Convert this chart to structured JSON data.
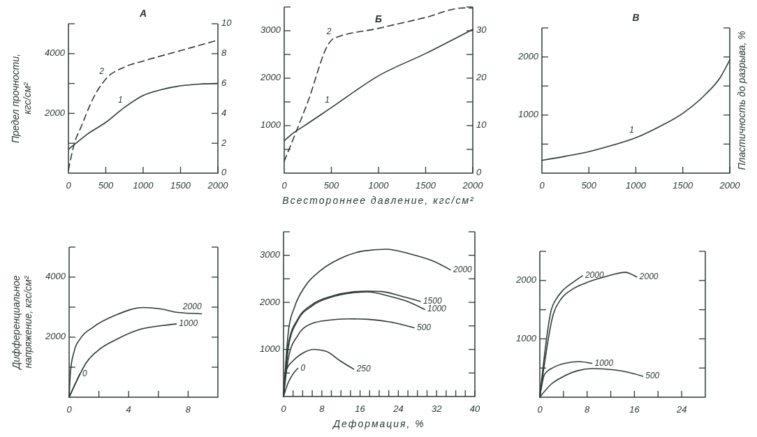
{
  "chart_data": [
    {
      "type": "line",
      "title": "А",
      "ylabel": "Предел прочности, кгс/см²",
      "xlim": [
        0,
        2000
      ],
      "ylim": [
        0,
        5000
      ],
      "y2lim": [
        0,
        10
      ],
      "xticks": [
        0,
        500,
        1000,
        1500,
        2000
      ],
      "yticks": [
        {
          "value": 1000,
          "label": null
        },
        2000,
        {
          "value": 3000,
          "label": null
        },
        4000,
        {
          "value": 5000,
          "label": null
        }
      ],
      "y2ticks": [
        0,
        2,
        4,
        6,
        8,
        10
      ],
      "series": [
        {
          "name": "1",
          "color": "#2e3b34",
          "line_style": "solid",
          "x": [
            0,
            100,
            250,
            500,
            750,
            1000,
            1250,
            1500,
            1750,
            2000
          ],
          "values": [
            800,
            1000,
            1300,
            1700,
            2200,
            2600,
            2800,
            2920,
            2980,
            3000
          ]
        },
        {
          "name": "2",
          "color": "#2e3b34",
          "line_style": "dashed",
          "axis": "y2",
          "x": [
            0,
            80,
            170,
            330,
            500,
            750,
            1000,
            1500,
            2000
          ],
          "values": [
            0.2,
            2,
            3.1,
            5,
            6.3,
            7.1,
            7.5,
            8.2,
            8.9
          ]
        }
      ]
    },
    {
      "type": "line",
      "title": "Б",
      "xlabel": "Всестороннее давление, кгс/см²",
      "xlim": [
        0,
        2000
      ],
      "ylim": [
        0,
        3500
      ],
      "y2lim": [
        0,
        35
      ],
      "xticks": [
        0,
        500,
        1000,
        1500,
        2000
      ],
      "yticks": [
        {
          "value": 500,
          "label": null
        },
        1000,
        {
          "value": 1500,
          "label": null
        },
        2000,
        {
          "value": 2500,
          "label": null
        },
        3000,
        {
          "value": 3500,
          "label": null
        }
      ],
      "y2ticks": [
        0,
        {
          "value": 5,
          "label": null
        },
        10,
        {
          "value": 15,
          "label": null
        },
        20,
        {
          "value": 25,
          "label": null
        },
        30,
        {
          "value": 35,
          "label": null
        }
      ],
      "series": [
        {
          "name": "1",
          "color": "#2e3b34",
          "line_style": "solid",
          "x": [
            0,
            100,
            200,
            500,
            1000,
            1500,
            2000
          ],
          "values": [
            680,
            850,
            980,
            1380,
            2050,
            2520,
            3030
          ]
        },
        {
          "name": "2",
          "color": "#2e3b34",
          "line_style": "dashed",
          "axis": "y2",
          "x": [
            0,
            250,
            480,
            520,
            1000,
            1500,
            1900,
            2000
          ],
          "values": [
            2.5,
            15,
            27.5,
            28.3,
            30.5,
            32.8,
            34.8,
            34.8
          ]
        }
      ]
    },
    {
      "type": "line",
      "title": "В",
      "y2label": "Пластичность до разрыва, %",
      "xlim": [
        0,
        2000
      ],
      "ylim": [
        0,
        2500
      ],
      "xticks": [
        0,
        500,
        1000,
        1500,
        2000
      ],
      "yticks": [
        {
          "value": 500,
          "label": null
        },
        1000,
        {
          "value": 1500,
          "label": null
        },
        2000,
        {
          "value": 2500,
          "label": null
        }
      ],
      "series": [
        {
          "name": "1",
          "color": "#2e3b34",
          "line_style": "solid",
          "x": [
            0,
            250,
            500,
            750,
            1000,
            1250,
            1500,
            1750,
            1900,
            2000
          ],
          "values": [
            220,
            290,
            370,
            480,
            610,
            800,
            1030,
            1370,
            1650,
            1950
          ]
        }
      ]
    },
    {
      "type": "line",
      "ylabel": "Дифференциальное напряжение, кгс/см²",
      "xlim": [
        0,
        10
      ],
      "ylim": [
        0,
        5000
      ],
      "xticks": [
        0,
        {
          "value": 2,
          "label": null
        },
        4,
        {
          "value": 6,
          "label": null
        },
        8
      ],
      "yticks": [
        {
          "value": 1000,
          "label": null
        },
        2000,
        {
          "value": 3000,
          "label": null
        },
        4000,
        {
          "value": 5000,
          "label": null
        }
      ],
      "series": [
        {
          "name": "2000",
          "color": "#2e3b34",
          "line_style": "solid",
          "x": [
            0,
            0.1,
            0.35,
            0.75,
            1.6,
            3.2,
            5,
            6.3,
            7.2,
            8.9
          ],
          "values": [
            0,
            900,
            1550,
            1950,
            2330,
            2750,
            2990,
            2930,
            2830,
            2780
          ]
        },
        {
          "name": "1000",
          "color": "#2e3b34",
          "line_style": "solid",
          "x": [
            0,
            0.5,
            1.15,
            1.9,
            3.2,
            4.7,
            6.3,
            7.2
          ],
          "values": [
            0,
            530,
            1150,
            1540,
            1930,
            2250,
            2390,
            2440
          ]
        },
        {
          "name": "0",
          "color": "#2e3b34",
          "line_style": "solid",
          "x": [
            0,
            0.35,
            0.7
          ],
          "values": [
            0,
            380,
            760
          ]
        }
      ]
    },
    {
      "type": "line",
      "xlabel": "Деформация, %",
      "xlim": [
        0,
        40
      ],
      "ylim": [
        0,
        3500
      ],
      "xticks": [
        0,
        {
          "value": 2,
          "label": null
        },
        {
          "value": 4,
          "label": null
        },
        {
          "value": 6,
          "label": null
        },
        8,
        {
          "value": 10,
          "label": null
        },
        {
          "value": 12,
          "label": null
        },
        {
          "value": 14,
          "label": null
        },
        16,
        {
          "value": 18,
          "label": null
        },
        {
          "value": 20,
          "label": null
        },
        {
          "value": 22,
          "label": null
        },
        24,
        {
          "value": 26,
          "label": null
        },
        {
          "value": 28,
          "label": null
        },
        {
          "value": 30,
          "label": null
        },
        32,
        {
          "value": 34,
          "label": null
        },
        {
          "value": 36,
          "label": null
        },
        {
          "value": 38,
          "label": null
        },
        40
      ],
      "yticks": [
        {
          "value": 500,
          "label": null
        },
        1000,
        {
          "value": 1500,
          "label": null
        },
        2000,
        {
          "value": 2500,
          "label": null
        },
        3000,
        {
          "value": 3500,
          "label": null
        }
      ],
      "series": [
        {
          "name": "2000",
          "color": "#2e3b34",
          "line_style": "solid",
          "x": [
            0,
            1.1,
            2.3,
            4.5,
            7.9,
            11.8,
            16.6,
            21.5,
            26.4,
            31.2,
            34.9
          ],
          "values": [
            0,
            1450,
            1900,
            2340,
            2690,
            2930,
            3090,
            3130,
            3030,
            2880,
            2690
          ]
        },
        {
          "name": "1500",
          "color": "#2e3b34",
          "line_style": "solid",
          "x": [
            0,
            1.1,
            3,
            5.9,
            10.3,
            14.2,
            17.6,
            20.5,
            24.4,
            28.6
          ],
          "values": [
            0,
            1160,
            1650,
            1950,
            2140,
            2220,
            2240,
            2230,
            2140,
            2020
          ]
        },
        {
          "name": "1000",
          "color": "#2e3b34",
          "line_style": "solid",
          "x": [
            0,
            1.1,
            3,
            5.9,
            10.3,
            14.2,
            17.6,
            22.5,
            26.4,
            29.5
          ],
          "values": [
            0,
            1100,
            1620,
            1920,
            2120,
            2200,
            2220,
            2120,
            2000,
            1850
          ]
        },
        {
          "name": "500",
          "color": "#2e3b34",
          "line_style": "solid",
          "x": [
            0,
            1.1,
            3,
            5.9,
            9.3,
            13.7,
            17.6,
            22.5,
            27.3
          ],
          "values": [
            0,
            860,
            1300,
            1550,
            1620,
            1650,
            1640,
            1580,
            1460
          ]
        },
        {
          "name": "250",
          "color": "#2e3b34",
          "line_style": "solid",
          "x": [
            0,
            0.6,
            2,
            4,
            6.4,
            8.9,
            11.8,
            14.7
          ],
          "values": [
            0,
            570,
            760,
            920,
            1000,
            960,
            760,
            580
          ]
        },
        {
          "name": "0",
          "color": "#2e3b34",
          "line_style": "solid",
          "x": [
            0,
            1,
            2,
            3
          ],
          "values": [
            0,
            300,
            480,
            600
          ]
        }
      ]
    },
    {
      "type": "line",
      "xlim": [
        0,
        28
      ],
      "ylim": [
        0,
        2500
      ],
      "xticks": [
        0,
        {
          "value": 4,
          "label": null
        },
        8,
        {
          "value": 12,
          "label": null
        },
        16,
        {
          "value": 20,
          "label": null
        },
        24
      ],
      "yticks": [
        {
          "value": 500,
          "label": null
        },
        1000,
        {
          "value": 1500,
          "label": null
        },
        2000,
        {
          "value": 2500,
          "label": null
        }
      ],
      "series": [
        {
          "name": "2000",
          "color": "#2e3b34",
          "line_style": "solid",
          "x": [
            0,
            1.95,
            2.7,
            3.9,
            5.5,
            7.2
          ],
          "values": [
            0,
            1500,
            1670,
            1830,
            1960,
            2080
          ]
        },
        {
          "name": "2000",
          "color": "#2e3b34",
          "line_style": "solid",
          "x": [
            0,
            2.3,
            3.5,
            5.5,
            7.8,
            10.9,
            14.5,
            15.2,
            16.4
          ],
          "values": [
            0,
            1430,
            1670,
            1850,
            1960,
            2060,
            2140,
            2120,
            2060
          ]
        },
        {
          "name": "1000",
          "color": "#2e3b34",
          "line_style": "solid",
          "x": [
            0,
            0.8,
            2.3,
            4.7,
            6.6,
            8.8
          ],
          "values": [
            0,
            390,
            510,
            590,
            610,
            580
          ]
        },
        {
          "name": "500",
          "color": "#2e3b34",
          "line_style": "solid",
          "x": [
            0,
            2,
            3.9,
            6.25,
            9,
            12.5,
            14.8,
            17.4
          ],
          "values": [
            0,
            230,
            350,
            450,
            490,
            470,
            430,
            360
          ]
        }
      ]
    }
  ]
}
